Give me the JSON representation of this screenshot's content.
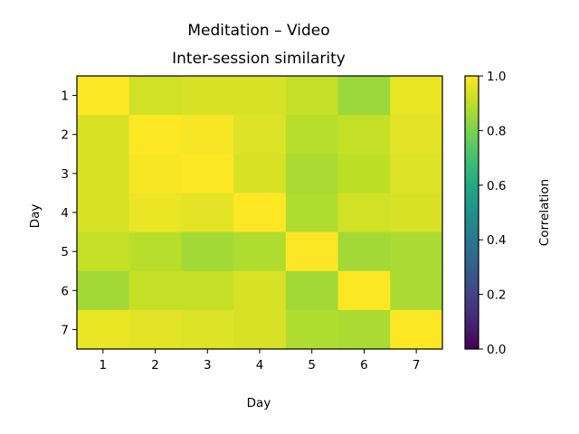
{
  "chart_data": {
    "type": "heatmap",
    "title": [
      "Meditation – Video",
      "Inter-session similarity"
    ],
    "xlabel": "Day",
    "ylabel": "Day",
    "x_categories": [
      "1",
      "2",
      "3",
      "4",
      "5",
      "6",
      "7"
    ],
    "y_categories": [
      "1",
      "2",
      "3",
      "4",
      "5",
      "6",
      "7"
    ],
    "values": [
      [
        1.0,
        0.93,
        0.94,
        0.94,
        0.91,
        0.85,
        0.97
      ],
      [
        0.94,
        1.0,
        0.99,
        0.95,
        0.89,
        0.91,
        0.96
      ],
      [
        0.94,
        0.99,
        1.0,
        0.94,
        0.87,
        0.9,
        0.95
      ],
      [
        0.94,
        0.97,
        0.96,
        1.0,
        0.88,
        0.93,
        0.94
      ],
      [
        0.91,
        0.89,
        0.86,
        0.88,
        1.0,
        0.86,
        0.87
      ],
      [
        0.86,
        0.91,
        0.91,
        0.94,
        0.86,
        1.0,
        0.87
      ],
      [
        0.97,
        0.96,
        0.95,
        0.94,
        0.88,
        0.87,
        1.0
      ]
    ],
    "colorbar": {
      "label": "Correlation",
      "range": [
        0.0,
        1.0
      ],
      "ticks": [
        "0.0",
        "0.2",
        "0.4",
        "0.6",
        "0.8",
        "1.0"
      ],
      "colormap": "viridis"
    }
  }
}
